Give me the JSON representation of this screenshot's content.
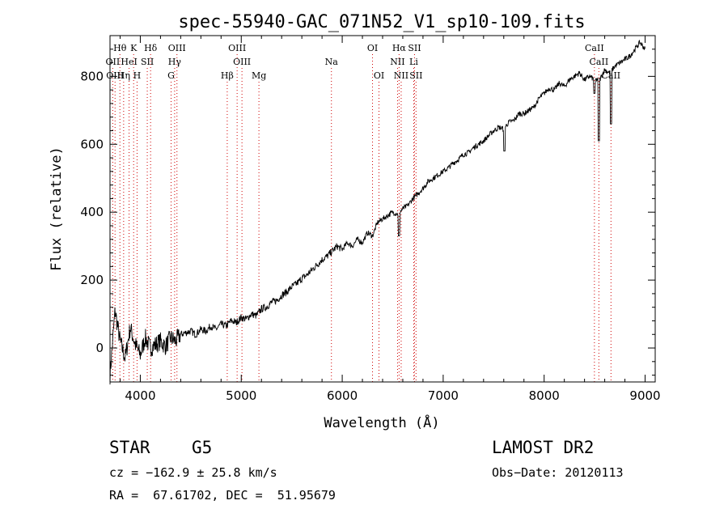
{
  "chart_data": {
    "type": "line",
    "title": "spec-55940-GAC_071N52_V1_sp10-109.fits",
    "xlabel": "Wavelength (Å)",
    "ylabel": "Flux (relative)",
    "xlim": [
      3700,
      9100
    ],
    "ylim": [
      -100,
      920
    ],
    "xticks": [
      4000,
      5000,
      6000,
      7000,
      8000,
      9000
    ],
    "yticks": [
      0,
      200,
      400,
      600,
      800
    ],
    "grid": false,
    "series": [
      {
        "x": [
          3700,
          3750,
          3800,
          3850,
          3900,
          3950,
          4000,
          4050,
          4100,
          4150,
          4200,
          4250,
          4300,
          4350,
          4400,
          4450,
          4500,
          4550,
          4600,
          4650,
          4700,
          4750,
          4800,
          4850,
          4900,
          4950,
          5000,
          5050,
          5100,
          5150,
          5200,
          5250,
          5300,
          5350,
          5400,
          5450,
          5500,
          5550,
          5600,
          5650,
          5700,
          5750,
          5800,
          5850,
          5900,
          5950,
          6000,
          6050,
          6100,
          6150,
          6200,
          6250,
          6300,
          6350,
          6400,
          6450,
          6500,
          6550,
          6600,
          6650,
          6700,
          6750,
          6800,
          6850,
          6900,
          6950,
          7000,
          7050,
          7100,
          7150,
          7200,
          7250,
          7300,
          7350,
          7400,
          7450,
          7500,
          7550,
          7600,
          7650,
          7700,
          7750,
          7800,
          7850,
          7900,
          7950,
          8000,
          8050,
          8100,
          8150,
          8200,
          8250,
          8300,
          8350,
          8400,
          8450,
          8500,
          8550,
          8600,
          8650,
          8700,
          8750,
          8800,
          8850,
          8900,
          8950,
          9000
        ],
        "y": [
          -80,
          110,
          20,
          -30,
          60,
          10,
          -20,
          30,
          0,
          10,
          20,
          5,
          30,
          20,
          40,
          45,
          50,
          40,
          55,
          50,
          65,
          55,
          70,
          65,
          80,
          75,
          90,
          85,
          100,
          95,
          115,
          120,
          135,
          140,
          155,
          165,
          180,
          190,
          205,
          215,
          230,
          245,
          260,
          270,
          285,
          300,
          290,
          310,
          300,
          320,
          310,
          340,
          330,
          370,
          380,
          390,
          400,
          395,
          410,
          420,
          440,
          455,
          470,
          490,
          500,
          510,
          520,
          530,
          545,
          555,
          570,
          575,
          590,
          600,
          610,
          625,
          640,
          650,
          645,
          665,
          670,
          690,
          690,
          700,
          710,
          735,
          750,
          765,
          760,
          780,
          770,
          790,
          800,
          810,
          790,
          800,
          790,
          790,
          820,
          810,
          830,
          840,
          850,
          860,
          880,
          900,
          880
        ],
        "dips": [
          {
            "x": 6563,
            "y": 330
          },
          {
            "x": 7605,
            "y": 580
          },
          {
            "x": 8498,
            "y": 750
          },
          {
            "x": 8542,
            "y": 610
          },
          {
            "x": 8662,
            "y": 660
          }
        ]
      }
    ],
    "line_markers": [
      {
        "label": "Hθ",
        "x": 3798,
        "row": 0
      },
      {
        "label": "K",
        "x": 3934,
        "row": 0
      },
      {
        "label": "Hδ",
        "x": 4102,
        "row": 0
      },
      {
        "label": "OIII",
        "x": 4363,
        "row": 0
      },
      {
        "label": "OIII",
        "x": 4959,
        "row": 0
      },
      {
        "label": "OI",
        "x": 6300,
        "row": 0
      },
      {
        "label": "Hα",
        "x": 6563,
        "row": 0
      },
      {
        "label": "SII",
        "x": 6716,
        "row": 0
      },
      {
        "label": "CaII",
        "x": 8498,
        "row": 0
      },
      {
        "label": "OII",
        "x": 3727,
        "row": 1
      },
      {
        "label": "HeI",
        "x": 3889,
        "row": 1
      },
      {
        "label": "SII",
        "x": 4069,
        "row": 1
      },
      {
        "label": "Hγ",
        "x": 4340,
        "row": 1
      },
      {
        "label": "OIII",
        "x": 5007,
        "row": 1
      },
      {
        "label": "Na",
        "x": 5893,
        "row": 1
      },
      {
        "label": "NII",
        "x": 6548,
        "row": 1
      },
      {
        "label": "Li",
        "x": 6708,
        "row": 1
      },
      {
        "label": "CaII",
        "x": 8542,
        "row": 1
      },
      {
        "label": "OIII",
        "x": 3750,
        "row": 2
      },
      {
        "label": "Hη",
        "x": 3835,
        "row": 2
      },
      {
        "label": "H",
        "x": 3968,
        "row": 2
      },
      {
        "label": "G",
        "x": 4305,
        "row": 2
      },
      {
        "label": "Hβ",
        "x": 4861,
        "row": 2
      },
      {
        "label": "Mg",
        "x": 5175,
        "row": 2
      },
      {
        "label": "OI",
        "x": 6364,
        "row": 2
      },
      {
        "label": "NII",
        "x": 6584,
        "row": 2
      },
      {
        "label": "SII",
        "x": 6731,
        "row": 2
      },
      {
        "label": "CaII",
        "x": 8662,
        "row": 2
      }
    ],
    "marker_color": "#d00000"
  },
  "info": {
    "object_class": "STAR",
    "subclass": "G5",
    "survey": "LAMOST DR2",
    "cz": "cz = −162.9 ± 25.8 km/s",
    "obs_date": "Obs−Date: 20120113",
    "coords": "RA =  67.61702, DEC =  51.95679"
  }
}
